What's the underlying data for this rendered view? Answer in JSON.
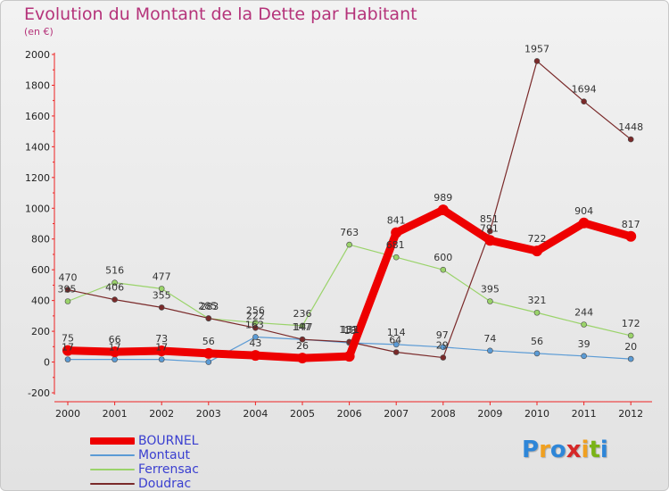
{
  "title": "Evolution du Montant de la Dette par Habitant",
  "subtitle": "(en €)",
  "brand": {
    "letters": [
      "P",
      "r",
      "o",
      "x",
      "i",
      "t",
      "i"
    ],
    "colors": [
      "#2e86d8",
      "#f0a020",
      "#2e86d8",
      "#d62828",
      "#f0a020",
      "#7ab317",
      "#2e86d8"
    ]
  },
  "chart_data": {
    "type": "line",
    "categories": [
      "2000",
      "2001",
      "2002",
      "2003",
      "2004",
      "2005",
      "2006",
      "2007",
      "2008",
      "2009",
      "2010",
      "2011",
      "2012"
    ],
    "ylim": [
      -200,
      2000
    ],
    "yticks": [
      -200,
      0,
      200,
      400,
      600,
      800,
      1000,
      1200,
      1400,
      1600,
      1800,
      2000
    ],
    "grid": false,
    "legend": "bottom-left",
    "series": [
      {
        "name": "BOURNEL",
        "color": "#ee0000",
        "bold": true,
        "values": [
          75,
          66,
          73,
          56,
          43,
          26,
          37,
          841,
          989,
          791,
          722,
          904,
          817
        ],
        "labels": [
          "75",
          "66",
          "73",
          "56",
          "43",
          "26",
          "",
          "841",
          "989",
          "",
          "722",
          "904",
          "817"
        ]
      },
      {
        "name": "Montaut",
        "color": "#5b9bd5",
        "values": [
          17,
          17,
          17,
          0,
          163,
          147,
          125,
          114,
          97,
          74,
          56,
          39,
          20
        ],
        "labels": [
          "17",
          "17",
          "17",
          "",
          "",
          "",
          "",
          "114",
          "",
          "74",
          "56",
          "39",
          "20"
        ]
      },
      {
        "name": "Ferrensac",
        "color": "#9ad36a",
        "values": [
          395,
          516,
          477,
          283,
          256,
          236,
          763,
          681,
          600,
          395,
          321,
          244,
          172
        ],
        "labels": [
          "",
          "516",
          "477",
          "",
          "256",
          "236",
          "763",
          "",
          "600",
          "395",
          "321",
          "244",
          "172"
        ]
      },
      {
        "name": "Doudrac",
        "color": "#7a2a2a",
        "values": [
          470,
          406,
          355,
          285,
          222,
          147,
          131,
          64,
          29,
          851,
          1957,
          1694,
          1448
        ],
        "labels": [
          "470",
          "406",
          "355",
          "",
          "222",
          "",
          "",
          "",
          "",
          "",
          "1957",
          "1694",
          "1448"
        ]
      }
    ],
    "extra_labels": [
      "395",
      "283",
      "285",
      "147",
      "131",
      "681",
      "64",
      "29",
      "791",
      "851",
      "163",
      "97",
      "13",
      "147",
      "131"
    ]
  }
}
